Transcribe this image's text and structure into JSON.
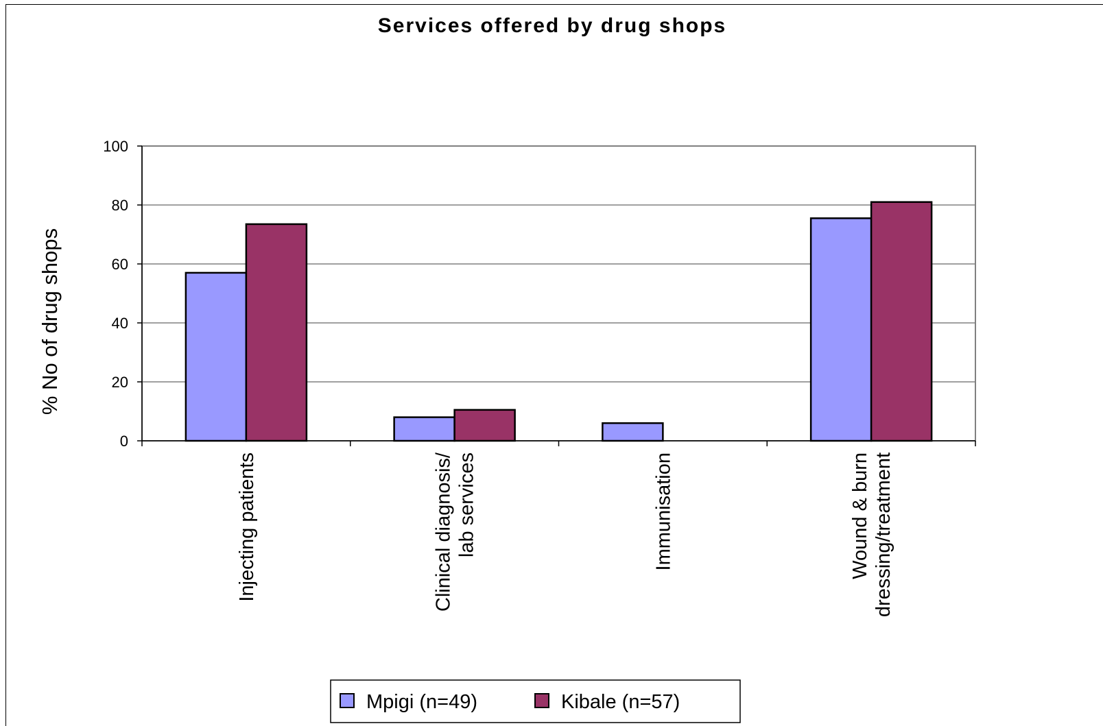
{
  "chart_data": {
    "type": "bar",
    "title": "Services offered by drug shops",
    "xlabel": "",
    "ylabel": "% No of drug shops",
    "ylim": [
      0,
      100
    ],
    "yticks": [
      0,
      20,
      40,
      60,
      80,
      100
    ],
    "grid": true,
    "legend_position": "bottom",
    "categories": [
      [
        "Injecting patients"
      ],
      [
        "Clinical diagnosis/",
        "lab services"
      ],
      [
        "Immunisation"
      ],
      [
        "Wound & burn",
        "dressing/treatment"
      ]
    ],
    "series": [
      {
        "name": "Mpigi (n=49)",
        "color": "#9999ff",
        "values": [
          57,
          8,
          6,
          75.5
        ]
      },
      {
        "name": "Kibale (n=57)",
        "color": "#993366",
        "values": [
          73.5,
          10.5,
          0,
          81
        ]
      }
    ]
  }
}
